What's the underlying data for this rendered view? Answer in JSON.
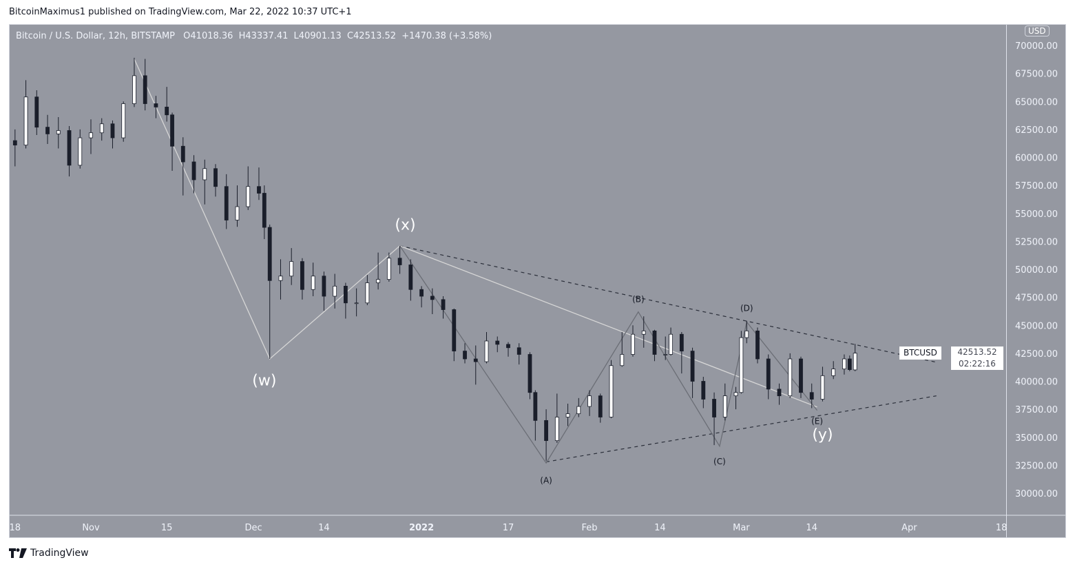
{
  "published": "BitcoinMaximus1 published on TradingView.com, Mar 22, 2022 10:37 UTC+1",
  "legend": {
    "symbol": "Bitcoin / U.S. Dollar, 12h, BITSTAMP",
    "open": "O41018.36",
    "high": "H43337.41",
    "low": "L40901.13",
    "close": "C42513.52",
    "change": "+1470.38 (+3.58%)"
  },
  "currency_label": "USD",
  "last_price": {
    "symbol": "BTCUSD",
    "price": "42513.52",
    "countdown": "02:22:16"
  },
  "footer": {
    "brand": "TradingView"
  },
  "colors": {
    "background": "#9598a1",
    "up_candle": "#ffffff",
    "down_candle": "#1a1e2a",
    "wave_light": "#d6d6d6",
    "wave_dark": "#6b6e76",
    "trendline": "#2a2e39"
  },
  "chart_data": {
    "type": "candlestick",
    "title": "Bitcoin / U.S. Dollar, 12h, BITSTAMP",
    "ylim": [
      28000,
      72000
    ],
    "y_ticks": [
      "30000.00",
      "32500.00",
      "35000.00",
      "37500.00",
      "40000.00",
      "42500.00",
      "45000.00",
      "47500.00",
      "50000.00",
      "52500.00",
      "55000.00",
      "57500.00",
      "60000.00",
      "62500.00",
      "65000.00",
      "67500.00",
      "70000.00"
    ],
    "x_ticks": [
      {
        "date": "2021-10-18",
        "label": "18"
      },
      {
        "date": "2021-11-01",
        "label": "Nov"
      },
      {
        "date": "2021-11-15",
        "label": "15"
      },
      {
        "date": "2021-12-01",
        "label": "Dec"
      },
      {
        "date": "2021-12-14",
        "label": "14"
      },
      {
        "date": "2022-01-01",
        "label": "2022"
      },
      {
        "date": "2022-01-17",
        "label": "17"
      },
      {
        "date": "2022-02-01",
        "label": "Feb"
      },
      {
        "date": "2022-02-14",
        "label": "14"
      },
      {
        "date": "2022-03-01",
        "label": "Mar"
      },
      {
        "date": "2022-03-14",
        "label": "14"
      },
      {
        "date": "2022-04-01",
        "label": "Apr"
      },
      {
        "date": "2022-04-18",
        "label": "18"
      }
    ],
    "candles": [
      [
        "2021-10-18",
        61500,
        62500,
        59200,
        61100
      ],
      [
        "2021-10-20",
        61100,
        66900,
        60800,
        65400
      ],
      [
        "2021-10-22",
        65400,
        66000,
        62000,
        62700
      ],
      [
        "2021-10-24",
        62700,
        63800,
        61200,
        62100
      ],
      [
        "2021-10-26",
        62100,
        63600,
        60800,
        62400
      ],
      [
        "2021-10-28",
        62400,
        62800,
        58300,
        59300
      ],
      [
        "2021-10-30",
        59300,
        62500,
        59000,
        61750
      ],
      [
        "2021-11-01",
        61750,
        63400,
        60300,
        62200
      ],
      [
        "2021-11-03",
        62200,
        63500,
        61500,
        63000
      ],
      [
        "2021-11-05",
        63000,
        63300,
        60800,
        61750
      ],
      [
        "2021-11-07",
        61750,
        65000,
        61400,
        64800
      ],
      [
        "2021-11-09",
        64800,
        68900,
        64500,
        67300
      ],
      [
        "2021-11-11",
        67300,
        68800,
        64200,
        64800
      ],
      [
        "2021-11-13",
        64800,
        65500,
        63500,
        64500
      ],
      [
        "2021-11-15",
        64500,
        66300,
        63200,
        63800
      ],
      [
        "2021-11-16",
        63800,
        64000,
        58800,
        61000
      ],
      [
        "2021-11-18",
        61000,
        61800,
        56600,
        59600
      ],
      [
        "2021-11-20",
        59600,
        60200,
        56800,
        58000
      ],
      [
        "2021-11-22",
        58000,
        59800,
        55800,
        59000
      ],
      [
        "2021-11-24",
        59000,
        59400,
        56500,
        57400
      ],
      [
        "2021-11-26",
        57400,
        58500,
        53600,
        54400
      ],
      [
        "2021-11-28",
        54400,
        57500,
        53800,
        55600
      ],
      [
        "2021-11-30",
        55600,
        59200,
        55300,
        57400
      ],
      [
        "2021-12-02",
        57400,
        59100,
        56200,
        56800
      ],
      [
        "2021-12-03",
        56800,
        57500,
        52700,
        53750
      ],
      [
        "2021-12-04",
        53750,
        54000,
        42000,
        49000
      ],
      [
        "2021-12-06",
        49000,
        50900,
        47300,
        49400
      ],
      [
        "2021-12-08",
        49400,
        51900,
        48600,
        50700
      ],
      [
        "2021-12-10",
        50700,
        51000,
        47300,
        48200
      ],
      [
        "2021-12-12",
        48200,
        50600,
        47600,
        49400
      ],
      [
        "2021-12-14",
        49400,
        49800,
        46300,
        47600
      ],
      [
        "2021-12-16",
        47600,
        49600,
        46500,
        48500
      ],
      [
        "2021-12-18",
        48500,
        48800,
        45600,
        47000
      ],
      [
        "2021-12-20",
        47000,
        48300,
        45800,
        47000
      ],
      [
        "2021-12-22",
        47000,
        49500,
        46800,
        48800
      ],
      [
        "2021-12-24",
        48800,
        51500,
        48200,
        49100
      ],
      [
        "2021-12-26",
        49100,
        51500,
        48900,
        51000
      ],
      [
        "2021-12-28",
        51000,
        52100,
        49600,
        50400
      ],
      [
        "2021-12-30",
        50400,
        50900,
        47200,
        48200
      ],
      [
        "2022-01-01",
        48200,
        48500,
        46600,
        47600
      ],
      [
        "2022-01-03",
        47600,
        48300,
        46000,
        47300
      ],
      [
        "2022-01-05",
        47300,
        47600,
        45600,
        46400
      ],
      [
        "2022-01-07",
        46400,
        46500,
        41800,
        42700
      ],
      [
        "2022-01-09",
        42700,
        43400,
        41600,
        42000
      ],
      [
        "2022-01-11",
        42000,
        43200,
        39700,
        41750
      ],
      [
        "2022-01-13",
        41750,
        44400,
        41600,
        43600
      ],
      [
        "2022-01-15",
        43600,
        44000,
        42600,
        43300
      ],
      [
        "2022-01-17",
        43300,
        43500,
        42200,
        43000
      ],
      [
        "2022-01-19",
        43000,
        43400,
        41500,
        42400
      ],
      [
        "2022-01-21",
        42400,
        42600,
        38400,
        39000
      ],
      [
        "2022-01-22",
        39000,
        39200,
        34700,
        36500
      ],
      [
        "2022-01-24",
        36500,
        37500,
        32900,
        34700
      ],
      [
        "2022-01-26",
        34700,
        38900,
        34500,
        36800
      ],
      [
        "2022-01-28",
        36800,
        38000,
        36000,
        37100
      ],
      [
        "2022-01-30",
        37100,
        38500,
        36800,
        37750
      ],
      [
        "2022-02-01",
        37750,
        39200,
        36900,
        38700
      ],
      [
        "2022-02-03",
        38700,
        38900,
        36300,
        36800
      ],
      [
        "2022-02-05",
        36800,
        41900,
        36700,
        41400
      ],
      [
        "2022-02-07",
        41400,
        44400,
        41300,
        42400
      ],
      [
        "2022-02-09",
        42400,
        45000,
        42200,
        44200
      ],
      [
        "2022-02-11",
        44200,
        45800,
        43000,
        44500
      ],
      [
        "2022-02-13",
        44500,
        44600,
        41800,
        42400
      ],
      [
        "2022-02-15",
        42400,
        44000,
        41900,
        42400
      ],
      [
        "2022-02-16",
        42400,
        44800,
        42300,
        44200
      ],
      [
        "2022-02-18",
        44200,
        44400,
        40700,
        42700
      ],
      [
        "2022-02-20",
        42700,
        43000,
        38500,
        40000
      ],
      [
        "2022-02-22",
        40000,
        40400,
        37600,
        38400
      ],
      [
        "2022-02-24",
        38400,
        39000,
        34300,
        36800
      ],
      [
        "2022-02-26",
        36800,
        39800,
        36500,
        38700
      ],
      [
        "2022-02-28",
        38700,
        39500,
        37500,
        39000
      ],
      [
        "2022-03-01",
        39000,
        44500,
        38900,
        43900
      ],
      [
        "2022-03-02",
        43900,
        45400,
        43400,
        44500
      ],
      [
        "2022-03-04",
        44500,
        44800,
        41600,
        42000
      ],
      [
        "2022-03-06",
        42000,
        42400,
        38400,
        39300
      ],
      [
        "2022-03-08",
        39300,
        39800,
        37900,
        38700
      ],
      [
        "2022-03-10",
        38700,
        42500,
        38500,
        42000
      ],
      [
        "2022-03-12",
        42000,
        42200,
        38500,
        39000
      ],
      [
        "2022-03-14",
        39000,
        39800,
        37600,
        38400
      ],
      [
        "2022-03-16",
        38400,
        41300,
        38200,
        40500
      ],
      [
        "2022-03-18",
        40500,
        41800,
        40200,
        41100
      ],
      [
        "2022-03-20",
        41100,
        42400,
        40600,
        42000
      ],
      [
        "2022-03-21",
        42000,
        42300,
        40900,
        41040
      ],
      [
        "2022-03-22",
        41018.36,
        43337.41,
        40901.13,
        42513.52
      ]
    ],
    "wave_lines_light": [
      [
        "2021-11-09",
        68800
      ],
      [
        "2021-12-04",
        42000
      ],
      [
        "2021-12-28",
        52100
      ],
      [
        "2022-03-15",
        37700
      ]
    ],
    "wave_lines_dark": [
      [
        "2021-12-28",
        52100
      ],
      [
        "2022-01-24",
        32700
      ],
      [
        "2022-02-10",
        46200
      ],
      [
        "2022-02-25",
        34200
      ],
      [
        "2022-03-02",
        45300
      ],
      [
        "2022-03-15",
        37400
      ]
    ],
    "trendlines_dashed": [
      [
        [
          "2021-12-28",
          52100
        ],
        [
          "2022-04-06",
          41700
        ]
      ],
      [
        [
          "2022-01-24",
          32800
        ],
        [
          "2022-04-06",
          38700
        ]
      ]
    ],
    "annotations": [
      {
        "text": "(w)",
        "date": "2021-12-03",
        "price": 40000,
        "size": "large"
      },
      {
        "text": "(x)",
        "date": "2021-12-29",
        "price": 53900,
        "size": "large"
      },
      {
        "text": "(y)",
        "date": "2022-03-16",
        "price": 35800,
        "size": "large"
      },
      {
        "text": "(A)",
        "date": "2022-01-24",
        "price": 31100,
        "size": "small"
      },
      {
        "text": "(B)",
        "date": "2022-02-10",
        "price": 47300,
        "size": "small"
      },
      {
        "text": "(C)",
        "date": "2022-02-25",
        "price": 32800,
        "size": "small"
      },
      {
        "text": "(D)",
        "date": "2022-03-02",
        "price": 46500,
        "size": "small"
      },
      {
        "text": "(E)",
        "date": "2022-03-15",
        "price": 36400,
        "size": "small"
      }
    ]
  }
}
